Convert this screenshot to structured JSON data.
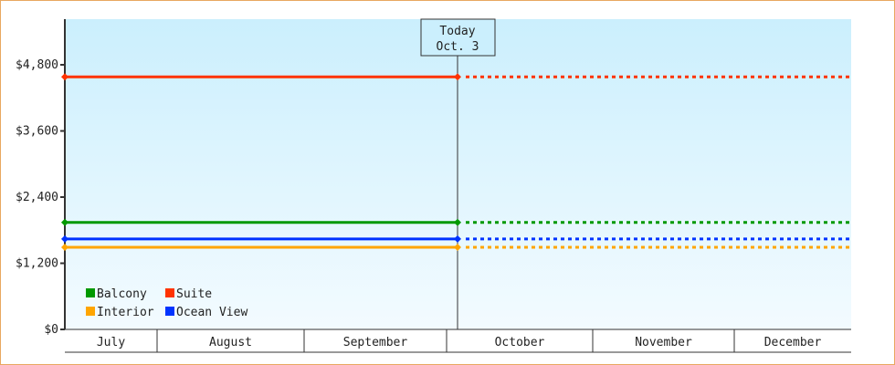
{
  "chart_data": {
    "type": "line",
    "title": "",
    "xlabel": "",
    "ylabel": "",
    "ylim": [
      0,
      5600
    ],
    "y_ticks": [
      "$0",
      "$1,200",
      "$2,400",
      "$3,600",
      "$4,800"
    ],
    "y_tick_values": [
      0,
      1200,
      2400,
      3600,
      4800
    ],
    "x_categories": [
      "July",
      "August",
      "September",
      "October",
      "November",
      "December"
    ],
    "grid": false,
    "legend_position": "bottom-left",
    "today_marker": {
      "line1": "Today",
      "line2": "Oct. 3"
    },
    "series": [
      {
        "name": "Balcony",
        "color": "#009900",
        "actual": [
          1940,
          1940
        ],
        "projected": 1940
      },
      {
        "name": "Suite",
        "color": "#ff3300",
        "actual": [
          4580,
          4580
        ],
        "projected": 4580
      },
      {
        "name": "Interior",
        "color": "#ffa500",
        "actual": [
          1490,
          1490
        ],
        "projected": 1490
      },
      {
        "name": "Ocean View",
        "color": "#0033ff",
        "actual": [
          1640,
          1640
        ],
        "projected": 1640
      }
    ],
    "x_points": [
      "July",
      "Oct. 3"
    ],
    "projection_style": "dashed to December"
  }
}
